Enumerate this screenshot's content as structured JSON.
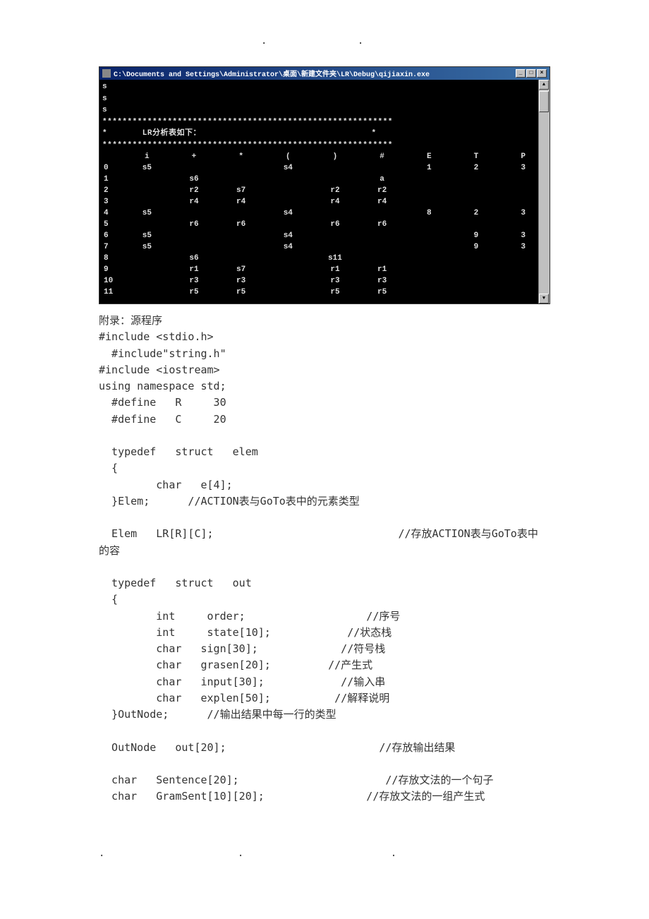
{
  "header_dots": [
    ".",
    "."
  ],
  "console": {
    "title_path": "C:\\Documents and Settings\\Administrator\\桌面\\新建文件夹\\LR\\Debug\\qijiaxin.exe",
    "prefix_lines": [
      "s",
      "s",
      "s"
    ],
    "star_line": "**********************************************************",
    "header_text": "*       LR分析表如下：                                  *",
    "columns": [
      "",
      "i",
      "+",
      "*",
      "(",
      ")",
      "#",
      "E",
      "T",
      "P"
    ],
    "rows": [
      {
        "state": "0",
        "cells": [
          "s5",
          "",
          "",
          "s4",
          "",
          "",
          "1",
          "2",
          "3"
        ]
      },
      {
        "state": "1",
        "cells": [
          "",
          "s6",
          "",
          "",
          "",
          "a",
          "",
          "",
          ""
        ]
      },
      {
        "state": "2",
        "cells": [
          "",
          "r2",
          "s7",
          "",
          "r2",
          "r2",
          "",
          "",
          ""
        ]
      },
      {
        "state": "3",
        "cells": [
          "",
          "r4",
          "r4",
          "",
          "r4",
          "r4",
          "",
          "",
          ""
        ]
      },
      {
        "state": "4",
        "cells": [
          "s5",
          "",
          "",
          "s4",
          "",
          "",
          "8",
          "2",
          "3"
        ]
      },
      {
        "state": "5",
        "cells": [
          "",
          "r6",
          "r6",
          "",
          "r6",
          "r6",
          "",
          "",
          ""
        ]
      },
      {
        "state": "6",
        "cells": [
          "s5",
          "",
          "",
          "s4",
          "",
          "",
          "",
          "9",
          "3"
        ]
      },
      {
        "state": "7",
        "cells": [
          "s5",
          "",
          "",
          "s4",
          "",
          "",
          "",
          "9",
          "3"
        ]
      },
      {
        "state": "8",
        "cells": [
          "",
          "s6",
          "",
          "",
          "s11",
          "",
          "",
          "",
          ""
        ]
      },
      {
        "state": "9",
        "cells": [
          "",
          "r1",
          "s7",
          "",
          "r1",
          "r1",
          "",
          "",
          ""
        ]
      },
      {
        "state": "10",
        "cells": [
          "",
          "r3",
          "r3",
          "",
          "r3",
          "r3",
          "",
          "",
          ""
        ]
      },
      {
        "state": "11",
        "cells": [
          "",
          "r5",
          "r5",
          "",
          "r5",
          "r5",
          "",
          "",
          ""
        ]
      }
    ],
    "colors": {
      "background": "#000000",
      "text": "#e0e0e0",
      "titlebar_start": "#0a246a",
      "titlebar_end": "#3a6ea5",
      "scrollbar": "#c0c0c0"
    }
  },
  "appendix_title": "附录：源程序",
  "code_lines": [
    "#include <stdio.h>",
    "  #include\"string.h\"",
    "#include <iostream>",
    "using namespace std;",
    "  #define   R     30",
    "  #define   C     20",
    "",
    "  typedef   struct   elem",
    "  {",
    "         char   e[4];",
    "  }Elem;      //ACTION表与GoTo表中的元素类型",
    "",
    "  Elem   LR[R][C];                             //存放ACTION表与GoTo表中",
    "的容",
    "",
    "  typedef   struct   out",
    "  {",
    "         int     order;                   //序号",
    "         int     state[10];            //状态栈",
    "         char   sign[30];             //符号栈",
    "         char   grasen[20];         //产生式",
    "         char   input[30];            //输入串",
    "         char   explen[50];          //解释说明",
    "  }OutNode;      //输出结果中每一行的类型",
    "",
    "  OutNode   out[20];                        //存放输出结果",
    "",
    "  char   Sentence[20];                       //存放文法的一个句子",
    "  char   GramSent[10][20];                //存放文法的一组产生式"
  ],
  "footer_dots": [
    ".",
    ".",
    "."
  ]
}
